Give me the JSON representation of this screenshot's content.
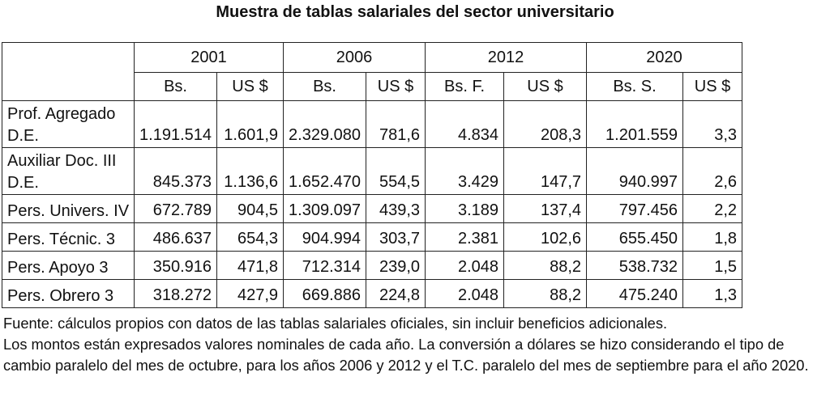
{
  "title": "Muestra de tablas salariales del sector universitario",
  "years": [
    "2001",
    "2006",
    "2012",
    "2020"
  ],
  "units": [
    "Bs.",
    "US $",
    "Bs.",
    "US $",
    "Bs. F.",
    "US $",
    "Bs. S.",
    "US $"
  ],
  "rows": [
    {
      "label1": "Prof. Agregado",
      "label2": "D.E.",
      "values": [
        "1.191.514",
        "1.601,9",
        "2.329.080",
        "781,6",
        "4.834",
        "208,3",
        "1.201.559",
        "3,3"
      ]
    },
    {
      "label1": "Auxiliar Doc. III",
      "label2": "D.E.",
      "values": [
        "845.373",
        "1.136,6",
        "1.652.470",
        "554,5",
        "3.429",
        "147,7",
        "940.997",
        "2,6"
      ]
    },
    {
      "label1": "Pers. Univers. IV",
      "label2": "",
      "values": [
        "672.789",
        "904,5",
        "1.309.097",
        "439,3",
        "3.189",
        "137,4",
        "797.456",
        "2,2"
      ]
    },
    {
      "label1": "Pers. Técnic. 3",
      "label2": "",
      "values": [
        "486.637",
        "654,3",
        "904.994",
        "303,7",
        "2.381",
        "102,6",
        "655.450",
        "1,8"
      ]
    },
    {
      "label1": "Pers. Apoyo 3",
      "label2": "",
      "values": [
        "350.916",
        "471,8",
        "712.314",
        "239,0",
        "2.048",
        "88,2",
        "538.732",
        "1,5"
      ]
    },
    {
      "label1": "Pers. Obrero 3",
      "label2": "",
      "values": [
        "318.272",
        "427,9",
        "669.886",
        "224,8",
        "2.048",
        "88,2",
        "475.240",
        "1,3"
      ]
    }
  ],
  "notes": [
    "Fuente: cálculos propios con datos de las tablas salariales oficiales, sin incluir beneficios adicionales.",
    "Los montos están expresados valores nominales de cada año. La conversión a dólares se hizo considerando el tipo de cambio paralelo del mes de octubre, para los años 2006 y 2012 y el T.C. paralelo del mes de septiembre para el año 2020."
  ]
}
